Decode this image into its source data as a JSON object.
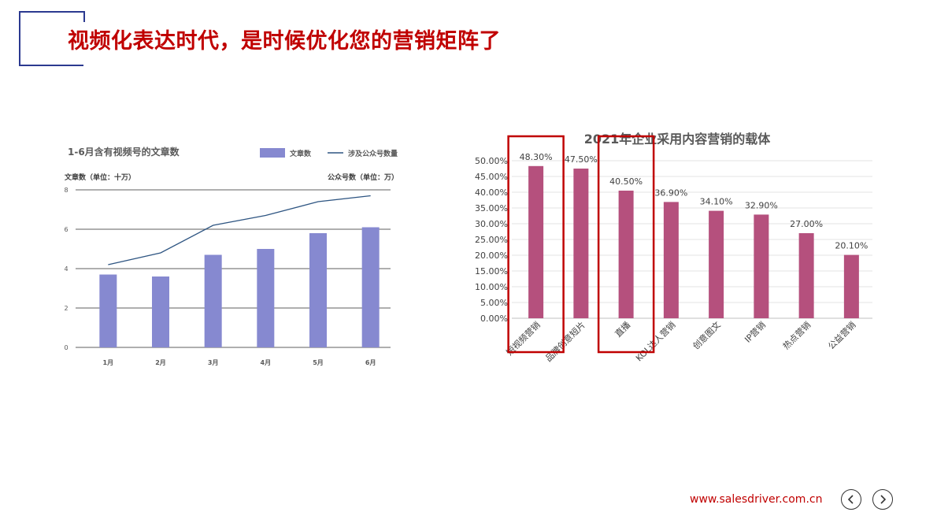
{
  "page": {
    "title": "视频化表达时代，是时候优化您的营销矩阵了",
    "footer_url": "www.salesdriver.com.cn"
  },
  "nav": {
    "prev_icon": "chevron-left-icon",
    "next_icon": "chevron-right-icon"
  },
  "colors": {
    "title": "#c00000",
    "frame": "#2b3990",
    "bar1": "#8689d0",
    "line1": "#2e5582",
    "bar2": "#b5507d",
    "highlight": "#c00000"
  },
  "chart_data": [
    {
      "type": "bar",
      "title": "1-6月含有视频号的文章数",
      "categories": [
        "1月",
        "2月",
        "3月",
        "4月",
        "5月",
        "6月"
      ],
      "series": [
        {
          "name": "文章数",
          "type": "bar",
          "axis": "left",
          "values": [
            3.7,
            3.6,
            4.7,
            5.0,
            5.8,
            6.1
          ]
        },
        {
          "name": "涉及公众号数量",
          "type": "line",
          "axis": "right",
          "values": [
            4.2,
            4.8,
            6.2,
            6.7,
            7.4,
            7.7
          ]
        }
      ],
      "ylabel_left": "文章数（单位：十万）",
      "ylabel_right": "公众号数（单位：万）",
      "yticks": [
        "8",
        "6",
        "4",
        "2",
        "0"
      ],
      "ylim": [
        0,
        8
      ],
      "grid": true,
      "legend": "top-right"
    },
    {
      "type": "bar",
      "title": "2021年企业采用内容营销的载体",
      "categories": [
        "短视频营销",
        "品牌创意短片",
        "直播",
        "KOL达人营销",
        "创意图文",
        "IP营销",
        "热点营销",
        "公益营销"
      ],
      "values": [
        48.3,
        47.5,
        40.5,
        36.9,
        34.1,
        32.9,
        27.0,
        20.1
      ],
      "data_labels": [
        "48.30%",
        "47.50%",
        "40.50%",
        "36.90%",
        "34.10%",
        "32.90%",
        "27.00%",
        "20.10%"
      ],
      "yticks": [
        "50.00%",
        "45.00%",
        "40.00%",
        "35.00%",
        "30.00%",
        "25.00%",
        "20.00%",
        "15.00%",
        "10.00%",
        "5.00%",
        "0.00%"
      ],
      "ylim": [
        0,
        50
      ],
      "grid": true,
      "highlighted_categories": [
        "短视频营销",
        "直播"
      ]
    }
  ]
}
